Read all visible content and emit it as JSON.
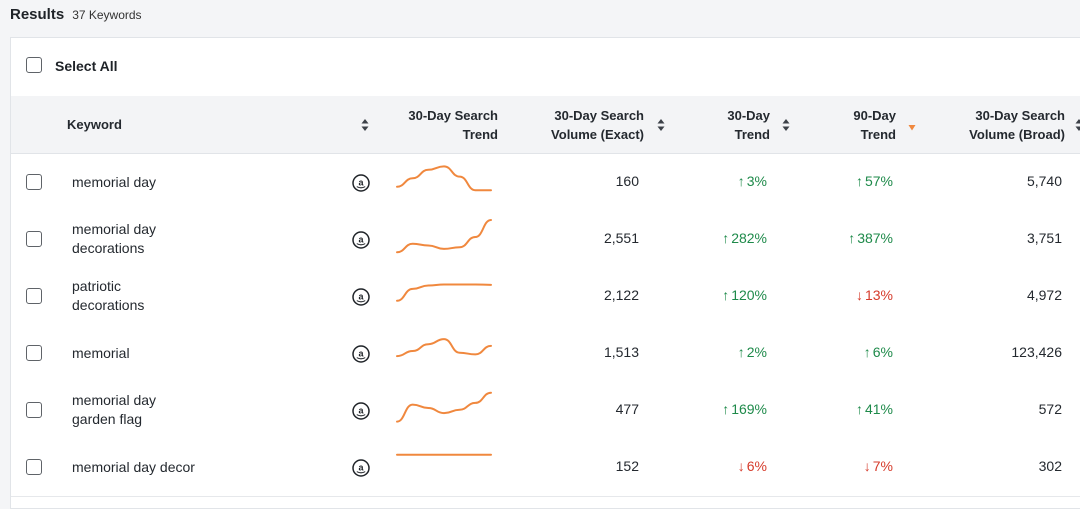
{
  "results": {
    "title": "Results",
    "count": "37 Keywords"
  },
  "select_all": {
    "label": "Select All"
  },
  "columns": {
    "keyword": "Keyword",
    "trend_30_l1": "30-Day Search",
    "trend_30_l2": "Trend",
    "vol_exact_l1": "30-Day Search",
    "vol_exact_l2": "Volume (Exact)",
    "d30_l1": "30-Day",
    "d30_l2": "Trend",
    "d90_l1": "90-Day",
    "d90_l2": "Trend",
    "vol_broad_l1": "30-Day Search",
    "vol_broad_l2": "Volume (Broad)"
  },
  "colors": {
    "spark": "#f0883e",
    "up": "#1e8a4a",
    "down": "#d63b2b",
    "sort_active": "#f0883e"
  },
  "rows": [
    {
      "kw1": "memorial day",
      "kw2": "",
      "vol_exact": "160",
      "t30": "3%",
      "t30_dir": "up",
      "t90": "57%",
      "t90_dir": "up",
      "vol_broad": "5,740",
      "spark": [
        0.3,
        0.55,
        0.8,
        0.9,
        0.6,
        0.2,
        0.2
      ]
    },
    {
      "kw1": "memorial day",
      "kw2": "decorations",
      "vol_exact": "2,551",
      "t30": "282%",
      "t30_dir": "up",
      "t90": "387%",
      "t90_dir": "up",
      "vol_broad": "3,751",
      "spark": [
        0.05,
        0.3,
        0.25,
        0.15,
        0.2,
        0.5,
        1.0
      ]
    },
    {
      "kw1": "patriotic",
      "kw2": "decorations",
      "vol_exact": "2,122",
      "t30": "120%",
      "t30_dir": "up",
      "t90": "13%",
      "t90_dir": "down",
      "vol_broad": "4,972",
      "spark": [
        0.3,
        0.65,
        0.75,
        0.78,
        0.78,
        0.78,
        0.77
      ]
    },
    {
      "kw1": "memorial",
      "kw2": "",
      "vol_exact": "1,513",
      "t30": "2%",
      "t30_dir": "up",
      "t90": "6%",
      "t90_dir": "up",
      "vol_broad": "123,426",
      "spark": [
        0.35,
        0.5,
        0.7,
        0.85,
        0.45,
        0.4,
        0.65
      ]
    },
    {
      "kw1": "memorial day",
      "kw2": "garden flag",
      "vol_exact": "477",
      "t30": "169%",
      "t30_dir": "up",
      "t90": "41%",
      "t90_dir": "up",
      "vol_broad": "572",
      "spark": [
        0.1,
        0.6,
        0.5,
        0.35,
        0.45,
        0.65,
        0.95
      ]
    },
    {
      "kw1": "memorial day decor",
      "kw2": "",
      "vol_exact": "152",
      "t30": "6%",
      "t30_dir": "down",
      "t90": "7%",
      "t90_dir": "down",
      "vol_broad": "302",
      "spark": [
        0.8,
        0.8,
        0.8,
        0.8,
        0.8,
        0.8,
        0.8
      ]
    }
  ]
}
